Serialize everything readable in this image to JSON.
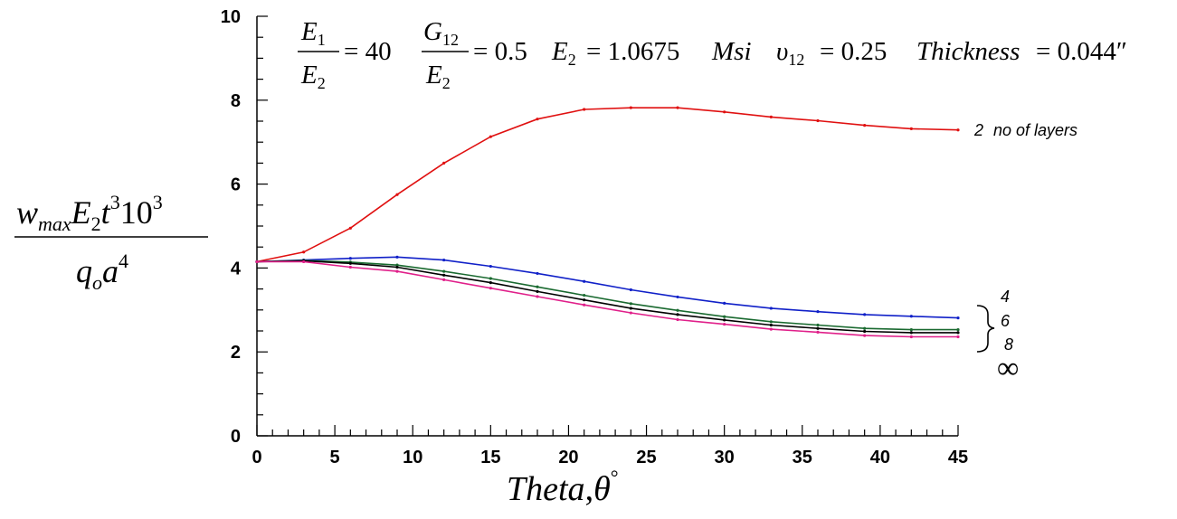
{
  "chart_data": {
    "type": "line",
    "x_ticks": [
      0,
      5,
      10,
      15,
      20,
      25,
      30,
      35,
      40,
      45
    ],
    "y_ticks": [
      0,
      2,
      4,
      6,
      8,
      10
    ],
    "xlim": [
      0,
      45
    ],
    "ylim": [
      0,
      10
    ],
    "grid": false,
    "x": [
      0,
      3,
      6,
      9,
      12,
      15,
      18,
      21,
      24,
      27,
      30,
      33,
      36,
      39,
      42,
      45
    ],
    "series": [
      {
        "name": "2",
        "color": "#e01010",
        "values": [
          4.15,
          4.38,
          4.95,
          5.75,
          6.5,
          7.13,
          7.55,
          7.78,
          7.82,
          7.82,
          7.72,
          7.6,
          7.51,
          7.4,
          7.32,
          7.29
        ]
      },
      {
        "name": "4",
        "color": "#1020c8",
        "values": [
          4.15,
          4.19,
          4.23,
          4.26,
          4.19,
          4.04,
          3.87,
          3.68,
          3.48,
          3.31,
          3.16,
          3.04,
          2.96,
          2.89,
          2.85,
          2.81
        ]
      },
      {
        "name": "6",
        "color": "#1a6a30",
        "values": [
          4.15,
          4.18,
          4.14,
          4.07,
          3.92,
          3.75,
          3.55,
          3.35,
          3.15,
          2.99,
          2.84,
          2.72,
          2.64,
          2.56,
          2.53,
          2.53
        ]
      },
      {
        "name": "8",
        "color": "#000000",
        "values": [
          4.15,
          4.17,
          4.11,
          4.02,
          3.83,
          3.65,
          3.44,
          3.24,
          3.04,
          2.89,
          2.76,
          2.64,
          2.56,
          2.49,
          2.46,
          2.46
        ]
      },
      {
        "name": "∞",
        "color": "#e0208a",
        "values": [
          4.15,
          4.15,
          4.02,
          3.92,
          3.72,
          3.52,
          3.32,
          3.12,
          2.93,
          2.77,
          2.66,
          2.54,
          2.47,
          2.39,
          2.36,
          2.36
        ]
      }
    ],
    "series_labels": {
      "two": "2",
      "no_of_layers": "no of layers",
      "four": "4",
      "six": "6",
      "eight": "8",
      "infinity": "∞"
    },
    "header_equation": {
      "e1": "E",
      "e1_sub": "1",
      "e2": "E",
      "e2_sub": "2",
      "eq40": "= 40",
      "g12": "G",
      "g12_sub": "12",
      "eq05": "= 0.5",
      "e2b": "E",
      "e2b_sub": "2",
      "e2_value": "= 1.0675",
      "msi": "Msi",
      "nu": "υ",
      "nu_sub": "12",
      "nu_value": "= 0.25",
      "thickness": "Thickness",
      "thickness_value": "= 0.044″"
    },
    "xlabel": {
      "text": "Theta",
      "comma": ",",
      "theta": "θ",
      "degree": "°"
    },
    "ylabel": {
      "w": "w",
      "max": "max",
      "E": "E",
      "sub2": "2",
      "t": "t",
      "sup3": "3",
      "ten": "10",
      "sup3b": "3",
      "q": "q",
      "o": "o",
      "a": "a",
      "sup4": "4"
    }
  }
}
